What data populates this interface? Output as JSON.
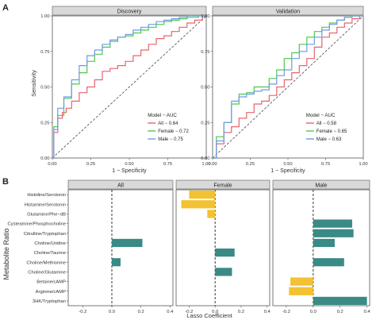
{
  "panel_labels": {
    "a": "A",
    "b": "B"
  },
  "colors": {
    "all": "#e8636e",
    "female": "#4cc94c",
    "male": "#6f9ae6",
    "positive": "#3a8a86",
    "negative": "#f2c233",
    "strip": "#d9d9d9",
    "frame": "#555555",
    "reference": "#444444"
  },
  "chart_data": [
    {
      "type": "line",
      "title": "Discovery",
      "xlabel": "1 − Specificity",
      "ylabel": "Sensitivity",
      "xlim": [
        0,
        1
      ],
      "ylim": [
        0,
        1
      ],
      "x_ticks": [
        "0.00",
        "0.25",
        "0.50",
        "0.75",
        "1.00"
      ],
      "y_ticks": [
        "0.00",
        "0.25",
        "0.50",
        "0.75",
        "1.00"
      ],
      "legend_title": "Model − AUC",
      "legend_position": "bottom-right",
      "reference_line": "diagonal",
      "series": [
        {
          "name": "All − 0.64",
          "key": "all",
          "x": [
            0,
            0.02,
            0.05,
            0.08,
            0.1,
            0.15,
            0.2,
            0.25,
            0.3,
            0.35,
            0.4,
            0.45,
            0.5,
            0.55,
            0.6,
            0.65,
            0.7,
            0.75,
            0.8,
            0.85,
            0.9,
            0.95,
            1
          ],
          "y": [
            0,
            0.18,
            0.28,
            0.32,
            0.35,
            0.4,
            0.46,
            0.5,
            0.55,
            0.61,
            0.63,
            0.65,
            0.68,
            0.72,
            0.76,
            0.8,
            0.84,
            0.86,
            0.89,
            0.92,
            0.95,
            0.97,
            1
          ]
        },
        {
          "name": "Female − 0.72",
          "key": "female",
          "x": [
            0,
            0.02,
            0.05,
            0.1,
            0.15,
            0.2,
            0.25,
            0.3,
            0.35,
            0.4,
            0.45,
            0.5,
            0.55,
            0.6,
            0.65,
            0.7,
            0.75,
            0.8,
            0.85,
            0.9,
            1
          ],
          "y": [
            0,
            0.22,
            0.3,
            0.42,
            0.52,
            0.6,
            0.68,
            0.73,
            0.78,
            0.82,
            0.85,
            0.86,
            0.88,
            0.9,
            0.92,
            0.94,
            0.96,
            0.97,
            0.98,
            0.99,
            1
          ]
        },
        {
          "name": "Male − 0.75",
          "key": "male",
          "x": [
            0,
            0.02,
            0.05,
            0.1,
            0.15,
            0.2,
            0.25,
            0.3,
            0.35,
            0.4,
            0.45,
            0.5,
            0.55,
            0.6,
            0.65,
            0.7,
            0.75,
            0.8,
            0.85,
            0.9,
            1
          ],
          "y": [
            0,
            0.2,
            0.35,
            0.43,
            0.55,
            0.65,
            0.72,
            0.76,
            0.8,
            0.83,
            0.85,
            0.87,
            0.9,
            0.92,
            0.94,
            0.96,
            0.97,
            0.98,
            0.99,
            1,
            1
          ]
        }
      ]
    },
    {
      "type": "line",
      "title": "Validation",
      "xlabel": "1 − Specificity",
      "ylabel": "",
      "xlim": [
        0,
        1
      ],
      "ylim": [
        0,
        1
      ],
      "x_ticks": [
        "0.00",
        "0.25",
        "0.50",
        "0.75",
        "1.00"
      ],
      "y_ticks": [
        "0.00",
        "0.25",
        "0.50",
        "0.75",
        "1.00"
      ],
      "legend_title": "Model − AUC",
      "legend_position": "bottom-right",
      "reference_line": "diagonal",
      "series": [
        {
          "name": "All − 0.58",
          "key": "all",
          "x": [
            0,
            0.05,
            0.1,
            0.15,
            0.2,
            0.25,
            0.3,
            0.35,
            0.4,
            0.45,
            0.5,
            0.55,
            0.6,
            0.65,
            0.7,
            0.75,
            0.8,
            0.85,
            0.9,
            0.95,
            1
          ],
          "y": [
            0,
            0.1,
            0.18,
            0.22,
            0.28,
            0.32,
            0.38,
            0.4,
            0.44,
            0.5,
            0.55,
            0.6,
            0.65,
            0.7,
            0.78,
            0.85,
            0.88,
            0.92,
            0.95,
            0.98,
            1
          ]
        },
        {
          "name": "Female − 0.65",
          "key": "female",
          "x": [
            0,
            0.05,
            0.1,
            0.15,
            0.2,
            0.25,
            0.3,
            0.35,
            0.4,
            0.45,
            0.5,
            0.55,
            0.6,
            0.65,
            0.7,
            0.75,
            0.8,
            0.85,
            0.9,
            0.95,
            1
          ],
          "y": [
            0,
            0.15,
            0.25,
            0.38,
            0.45,
            0.46,
            0.5,
            0.5,
            0.56,
            0.62,
            0.7,
            0.74,
            0.8,
            0.85,
            0.89,
            0.92,
            0.95,
            0.97,
            0.99,
            1,
            1
          ]
        },
        {
          "name": "Male − 0.63",
          "key": "male",
          "x": [
            0,
            0.05,
            0.1,
            0.15,
            0.2,
            0.25,
            0.3,
            0.35,
            0.4,
            0.45,
            0.5,
            0.55,
            0.6,
            0.65,
            0.7,
            0.75,
            0.8,
            0.85,
            0.9,
            0.95,
            1
          ],
          "y": [
            0,
            0.12,
            0.25,
            0.4,
            0.43,
            0.45,
            0.47,
            0.48,
            0.52,
            0.58,
            0.62,
            0.7,
            0.75,
            0.8,
            0.85,
            0.9,
            0.94,
            0.97,
            0.99,
            1,
            1
          ]
        }
      ]
    },
    {
      "type": "bar",
      "orientation": "horizontal",
      "xlabel": "Lasso Coefficient",
      "ylabel": "Metabolite Ratio",
      "xlim": [
        -0.3,
        0.42
      ],
      "x_ticks": [
        "-0.2",
        "0.0",
        "0.2",
        "0.4"
      ],
      "x_tick_values": [
        -0.2,
        0,
        0.2,
        0.4
      ],
      "reference_line": "vertical dashed at 0",
      "categories": [
        "Histidine/Serotonin",
        "Histamine/Serotonin",
        "Glutamine/Phe−dB",
        "Cysteamine/Phosphocholine",
        "Citrulline/Tryptophan",
        "Choline/Uridine",
        "Choline/Taurine",
        "Choline/Methionine",
        "Choline/Glutamine",
        "Betaine/cAMP",
        "Arginine/cAMP",
        "3HK/Tryptophan"
      ],
      "series": [
        {
          "name": "All",
          "values": [
            0,
            0,
            0,
            0,
            0,
            0.21,
            0,
            0.06,
            0,
            0,
            0,
            0
          ]
        },
        {
          "name": "Female",
          "values": [
            -0.2,
            -0.26,
            -0.06,
            0,
            0,
            0,
            0.15,
            0,
            0.13,
            0,
            0,
            0
          ]
        },
        {
          "name": "Male",
          "values": [
            0,
            0,
            0,
            0.29,
            0.3,
            0.16,
            0,
            0.23,
            0,
            -0.17,
            -0.18,
            0.4
          ]
        }
      ]
    }
  ]
}
